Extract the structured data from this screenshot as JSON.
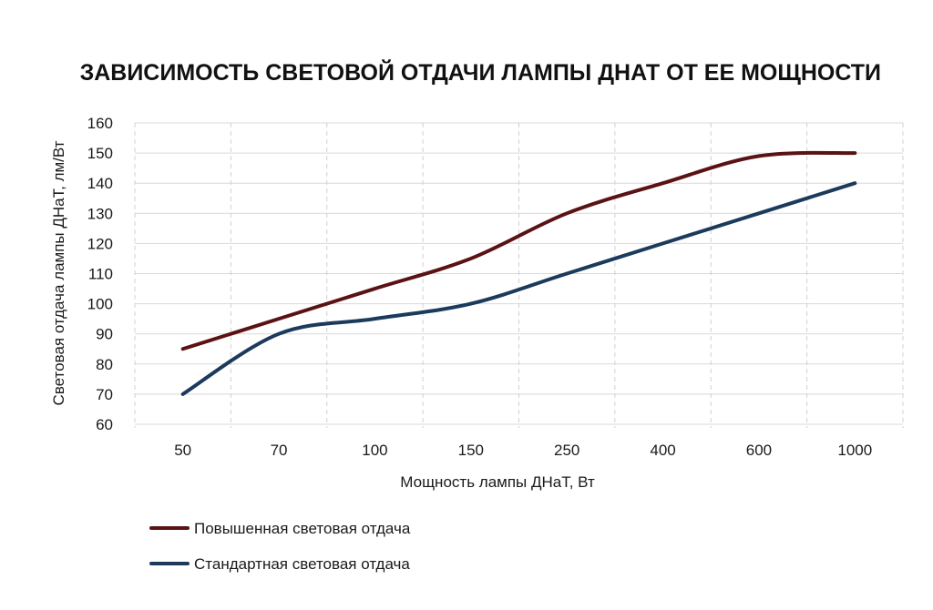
{
  "chart_data": {
    "type": "line",
    "title": "ЗАВИСИМОСТЬ СВЕТОВОЙ ОТДАЧИ ЛАМПЫ ДНАТ ОТ ЕЕ МОЩНОСТИ",
    "xlabel": "Мощность лампы ДНаТ, Вт",
    "ylabel": "Световая отдача лампы ДНаТ, лм/Вт",
    "categories": [
      "50",
      "70",
      "100",
      "150",
      "250",
      "400",
      "600",
      "1000"
    ],
    "ylim": [
      60,
      160
    ],
    "yticks": [
      60,
      70,
      80,
      90,
      100,
      110,
      120,
      130,
      140,
      150,
      160
    ],
    "grid": true,
    "legend_position": "bottom-left",
    "series": [
      {
        "name": "Повышенная световая отдача",
        "color": "#5a1214",
        "values": [
          85,
          95,
          105,
          115,
          130,
          140,
          149,
          150
        ]
      },
      {
        "name": "Стандартная световая отдача",
        "color": "#1b3a5c",
        "values": [
          70,
          90,
          95,
          100,
          110,
          120,
          130,
          140
        ]
      }
    ]
  }
}
